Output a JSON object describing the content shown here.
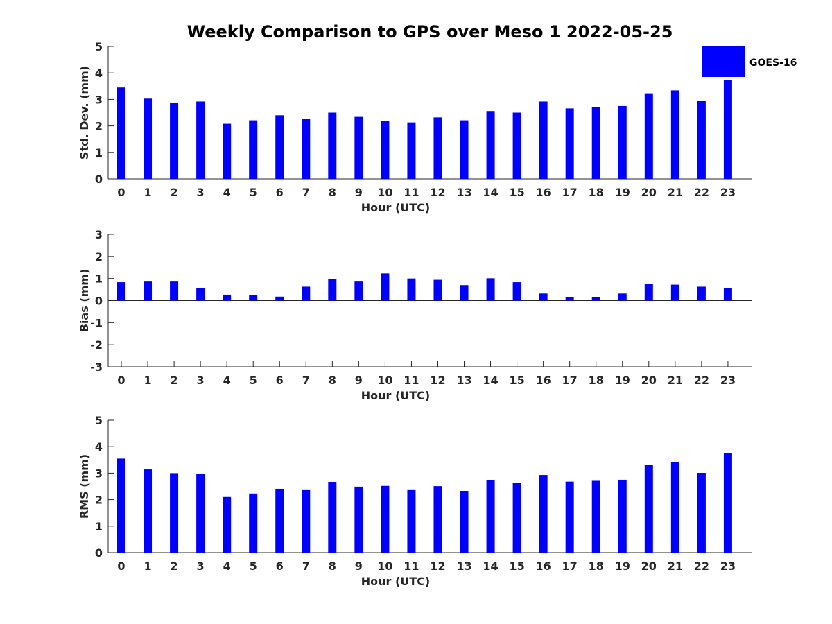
{
  "chart_data": {
    "title": "Weekly Comparison to GPS over Meso 1 2022-05-25",
    "legend": {
      "entries": [
        "GOES-16"
      ],
      "placement": "top-right",
      "color": "#0000ff"
    },
    "bar_color": "#0000ff",
    "subplots": [
      {
        "type": "bar",
        "xlabel": "Hour (UTC)",
        "ylabel": "Std. Dev. (mm)",
        "ylim": [
          0,
          5
        ],
        "yticks": [
          0,
          1,
          2,
          3,
          4,
          5
        ],
        "categories": [
          "0",
          "1",
          "2",
          "3",
          "4",
          "5",
          "6",
          "7",
          "8",
          "9",
          "10",
          "11",
          "12",
          "13",
          "14",
          "15",
          "16",
          "17",
          "18",
          "19",
          "20",
          "21",
          "22",
          "23"
        ],
        "series": [
          {
            "name": "GOES-16",
            "values": [
              3.45,
              3.03,
              2.87,
              2.92,
              2.08,
              2.21,
              2.4,
              2.26,
              2.5,
              2.34,
              2.18,
              2.13,
              2.32,
              2.21,
              2.56,
              2.5,
              2.92,
              2.66,
              2.71,
              2.75,
              3.23,
              3.34,
              2.95,
              3.73
            ]
          }
        ]
      },
      {
        "type": "bar",
        "xlabel": "Hour (UTC)",
        "ylabel": "Bias (mm)",
        "ylim": [
          -3,
          3
        ],
        "yticks": [
          -3,
          -2,
          -1,
          0,
          1,
          2,
          3
        ],
        "categories": [
          "0",
          "1",
          "2",
          "3",
          "4",
          "5",
          "6",
          "7",
          "8",
          "9",
          "10",
          "11",
          "12",
          "13",
          "14",
          "15",
          "16",
          "17",
          "18",
          "19",
          "20",
          "21",
          "22",
          "23"
        ],
        "series": [
          {
            "name": "GOES-16",
            "values": [
              0.83,
              0.86,
              0.86,
              0.58,
              0.27,
              0.26,
              0.18,
              0.63,
              0.96,
              0.86,
              1.23,
              1.0,
              0.94,
              0.7,
              1.01,
              0.83,
              0.32,
              0.17,
              0.17,
              0.32,
              0.77,
              0.72,
              0.63,
              0.57
            ]
          }
        ]
      },
      {
        "type": "bar",
        "xlabel": "Hour (UTC)",
        "ylabel": "RMS (mm)",
        "ylim": [
          0,
          5
        ],
        "yticks": [
          0,
          1,
          2,
          3,
          4,
          5
        ],
        "categories": [
          "0",
          "1",
          "2",
          "3",
          "4",
          "5",
          "6",
          "7",
          "8",
          "9",
          "10",
          "11",
          "12",
          "13",
          "14",
          "15",
          "16",
          "17",
          "18",
          "19",
          "20",
          "21",
          "22",
          "23"
        ],
        "series": [
          {
            "name": "GOES-16",
            "values": [
              3.55,
              3.14,
              3.0,
              2.97,
              2.1,
              2.23,
              2.41,
              2.36,
              2.67,
              2.49,
              2.52,
              2.36,
              2.51,
              2.33,
              2.73,
              2.62,
              2.93,
              2.68,
              2.71,
              2.75,
              3.32,
              3.41,
              3.01,
              3.77
            ]
          }
        ]
      }
    ]
  }
}
